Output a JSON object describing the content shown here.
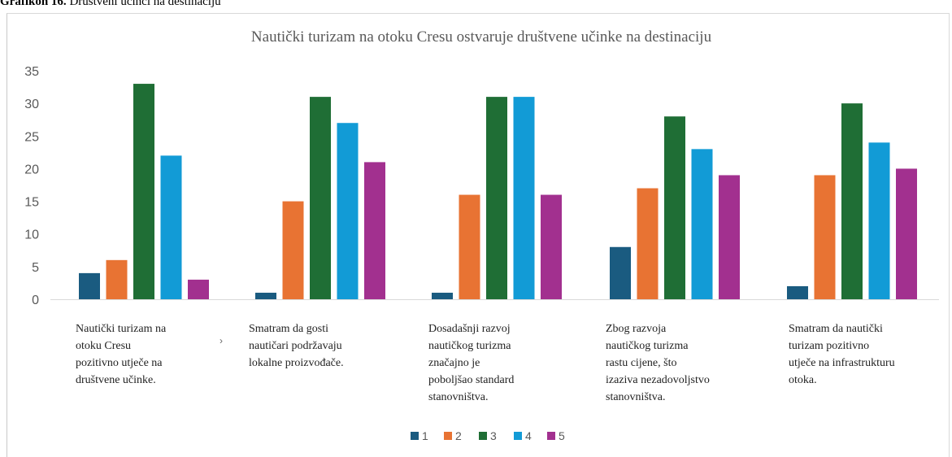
{
  "caption": {
    "bold": "Grafikon 16.",
    "text": " Društveni učinci na destinaciju"
  },
  "stray_mark": "›",
  "chart_data": {
    "type": "bar",
    "title": "Nautički turizam na otoku Cresu ostvaruje društvene učinke na destinaciju",
    "ylim": [
      0,
      35
    ],
    "yticks": [
      0,
      5,
      10,
      15,
      20,
      25,
      30,
      35
    ],
    "grid": false,
    "legend_position": "bottom",
    "categories": [
      [
        "Nautički turizam na",
        "otoku Cresu",
        "pozitivno utječe na",
        "društvene učinke."
      ],
      [
        "Smatram da gosti",
        "nautičari podržavaju",
        "lokalne proizvođače."
      ],
      [
        "Dosadašnji razvoj",
        "nautičkog turizma",
        "značajno je",
        "poboljšao standard",
        "stanovništva."
      ],
      [
        "Zbog razvoja",
        "nautičkog turizma",
        "rastu cijene, što",
        "izaziva nezadovoljstvo",
        "stanovništva."
      ],
      [
        "Smatram da nautički",
        "turizam pozitivno",
        "utječe na infrastrukturu",
        "otoka."
      ]
    ],
    "series": [
      {
        "name": "1",
        "color": "#1a5b80",
        "values": [
          4,
          1,
          1,
          8,
          2
        ]
      },
      {
        "name": "2",
        "color": "#e87333",
        "values": [
          6,
          15,
          16,
          17,
          19
        ]
      },
      {
        "name": "3",
        "color": "#1f6e35",
        "values": [
          33,
          31,
          31,
          28,
          30
        ]
      },
      {
        "name": "4",
        "color": "#129bd6",
        "values": [
          22,
          27,
          31,
          23,
          24
        ]
      },
      {
        "name": "5",
        "color": "#a2308f",
        "values": [
          3,
          21,
          16,
          19,
          20
        ]
      }
    ]
  }
}
